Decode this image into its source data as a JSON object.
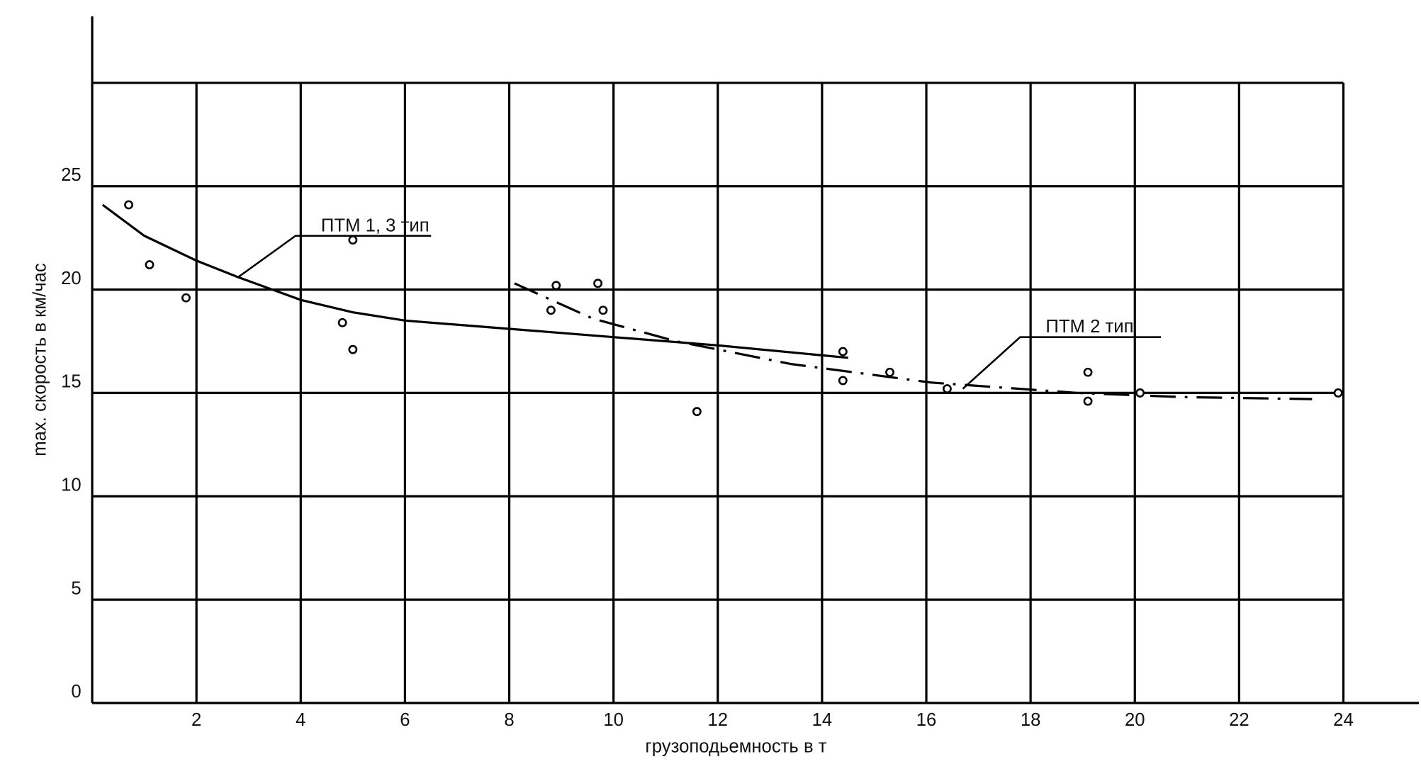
{
  "chart_data": {
    "type": "scatter",
    "title": "",
    "xlabel": "грузоподьемность в т",
    "ylabel": "max. скорость в км/час",
    "xlim": [
      0,
      24
    ],
    "ylim": [
      0,
      30
    ],
    "grid": true,
    "x_ticks": [
      2,
      4,
      6,
      8,
      10,
      12,
      14,
      16,
      18,
      20,
      22,
      24
    ],
    "y_ticks": [
      0,
      5,
      10,
      15,
      20,
      25
    ],
    "x_tick_labels": [
      "2",
      "4",
      "6",
      "8",
      "10",
      "12",
      "14",
      "16",
      "18",
      "20",
      "22",
      "24"
    ],
    "y_tick_labels": [
      "0",
      "5",
      "10",
      "15",
      "20",
      "25"
    ],
    "points": [
      [
        0.7,
        24.1
      ],
      [
        1.1,
        21.2
      ],
      [
        1.8,
        19.6
      ],
      [
        5.0,
        22.4
      ],
      [
        4.8,
        18.4
      ],
      [
        5.0,
        17.1
      ],
      [
        8.9,
        20.2
      ],
      [
        8.8,
        19.0
      ],
      [
        9.7,
        20.3
      ],
      [
        9.8,
        19.0
      ],
      [
        11.6,
        14.1
      ],
      [
        14.4,
        17.0
      ],
      [
        14.4,
        15.6
      ],
      [
        15.3,
        16.0
      ],
      [
        16.4,
        15.2
      ],
      [
        19.1,
        16.0
      ],
      [
        19.1,
        14.6
      ],
      [
        20.1,
        15.0
      ],
      [
        23.9,
        15.0
      ]
    ],
    "series": [
      {
        "name": "ПТМ 1, 3  тип",
        "style": "solid",
        "x": [
          0.2,
          1,
          2,
          2.8,
          4,
          5,
          6,
          8,
          10,
          12,
          14.5
        ],
        "y": [
          24.1,
          22.6,
          21.4,
          20.6,
          19.5,
          18.9,
          18.5,
          18.1,
          17.7,
          17.3,
          16.7
        ]
      },
      {
        "name": "ПТМ 2 тип",
        "style": "dash-dot",
        "x": [
          8.1,
          9.6,
          11.2,
          13.4,
          16.1,
          18.9,
          20.9,
          23.4
        ],
        "y": [
          20.3,
          18.6,
          17.5,
          16.4,
          15.5,
          15.0,
          14.8,
          14.7
        ]
      }
    ],
    "annotations": [
      {
        "text": "ПТМ 1, 3  тип",
        "from": [
          2.8,
          20.6
        ],
        "elbow": [
          3.9,
          22.6
        ],
        "to": [
          6.5,
          22.6
        ]
      },
      {
        "text": "ПТМ 2 тип",
        "from": [
          16.7,
          15.2
        ],
        "elbow": [
          17.8,
          17.7
        ],
        "to": [
          20.5,
          17.7
        ]
      }
    ],
    "colors": {
      "ink": "#000000",
      "background": "#ffffff"
    }
  }
}
